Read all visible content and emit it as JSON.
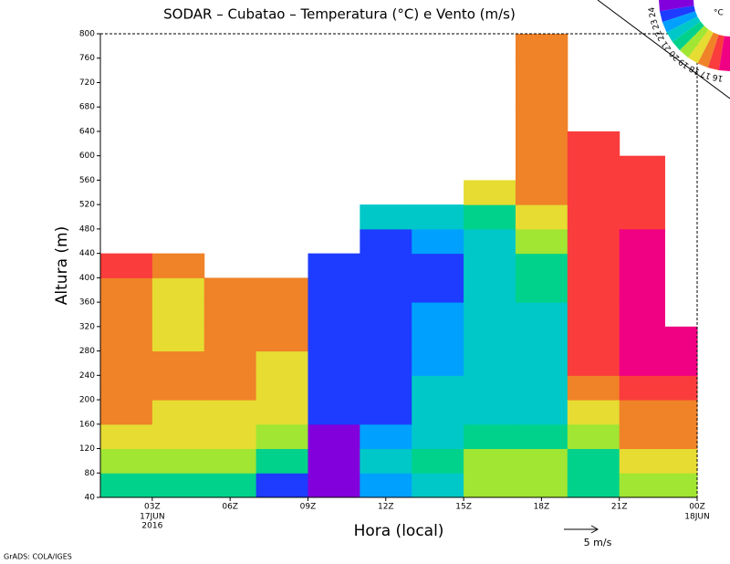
{
  "chart_data": {
    "type": "contour",
    "title": "SODAR – Cubatao – Temperatura (°C) e Vento (m/s)",
    "x_label": "Hora (local)",
    "y_label": "Altura (m)",
    "x_date_labels": [
      {
        "value": 3,
        "label": "17JUN"
      },
      {
        "value": 3,
        "label": "2016"
      },
      {
        "value": 24,
        "label": "18JUN"
      }
    ],
    "credit": "GrADS: COLA/IGES",
    "vector_reference": "5 m/s",
    "colorbar_unit": "°C",
    "xlim": [
      1,
      24
    ],
    "xticks": [
      {
        "value": 3,
        "label": "03Z"
      },
      {
        "value": 6,
        "label": "06Z"
      },
      {
        "value": 9,
        "label": "09Z"
      },
      {
        "value": 12,
        "label": "12Z"
      },
      {
        "value": 15,
        "label": "15Z"
      },
      {
        "value": 18,
        "label": "18Z"
      },
      {
        "value": 21,
        "label": "21Z"
      },
      {
        "value": 24,
        "label": "00Z"
      }
    ],
    "ylim": [
      40,
      800
    ],
    "yticks": [
      40,
      80,
      120,
      160,
      200,
      240,
      280,
      320,
      360,
      400,
      440,
      480,
      520,
      560,
      600,
      640,
      680,
      720,
      760,
      800
    ],
    "levels": [
      16,
      17,
      18,
      19,
      20,
      21,
      22,
      23,
      24
    ],
    "colors": [
      "#8200dc",
      "#1e3cff",
      "#00a0ff",
      "#00c8c8",
      "#00d28c",
      "#a0e632",
      "#e6dc32",
      "#f08228",
      "#fa3c3c",
      "#f00082"
    ],
    "x": [
      2,
      4,
      6,
      8,
      10,
      12,
      14,
      16,
      18,
      20,
      22,
      23.5
    ],
    "y": [
      60,
      100,
      140,
      180,
      220,
      260,
      300,
      340,
      380,
      420,
      460,
      500,
      540,
      580,
      620,
      660,
      700,
      740,
      780
    ],
    "z": [
      [
        19.5,
        20.5,
        21.5,
        22.5,
        22.8,
        22.8,
        22.7,
        22.8,
        22.9,
        23.5,
        null,
        null,
        null,
        null,
        null,
        null,
        null,
        null,
        null
      ],
      [
        19.5,
        20.5,
        21.5,
        21.8,
        22.2,
        22.5,
        21.8,
        21.5,
        21.5,
        22.5,
        null,
        null,
        null,
        null,
        null,
        null,
        null,
        null,
        null
      ],
      [
        19.5,
        20.5,
        21.3,
        21.8,
        22.2,
        22.5,
        22.8,
        22.8,
        22.8,
        null,
        null,
        null,
        null,
        null,
        null,
        null,
        null,
        null,
        null
      ],
      [
        16.5,
        19.5,
        20.5,
        21.2,
        21.5,
        21.7,
        22.0,
        22.5,
        22.5,
        null,
        null,
        null,
        null,
        null,
        null,
        null,
        null,
        null,
        null
      ],
      [
        15.5,
        15.5,
        15.8,
        16.5,
        16.8,
        16.5,
        16.2,
        16.0,
        16.0,
        16.0,
        null,
        null,
        null,
        null,
        null,
        null,
        null,
        null,
        null
      ],
      [
        17.5,
        18.5,
        17.2,
        16.8,
        16.5,
        16.3,
        16.0,
        16.0,
        16.0,
        16.2,
        16.8,
        18.0,
        null,
        null,
        null,
        null,
        null,
        null,
        null
      ],
      [
        18.5,
        19.5,
        18.5,
        18.5,
        18.2,
        17.5,
        17.2,
        17.0,
        16.8,
        16.8,
        17.2,
        18.5,
        null,
        null,
        null,
        null,
        null,
        null,
        null
      ],
      [
        20.5,
        20.5,
        19.5,
        18.8,
        18.5,
        18.3,
        18.2,
        18.0,
        18.0,
        18.0,
        18.5,
        19.5,
        21.0,
        null,
        null,
        null,
        null,
        null,
        null
      ],
      [
        20.8,
        20.0,
        19.5,
        18.8,
        18.5,
        18.5,
        18.7,
        18.8,
        19.0,
        19.5,
        20.5,
        21.8,
        22.5,
        22.8,
        22.9,
        22.8,
        22.7,
        22.6,
        22.5
      ],
      [
        19.5,
        19.8,
        20.5,
        21.5,
        22.5,
        23.2,
        23.5,
        23.5,
        23.5,
        23.5,
        23.5,
        23.5,
        23.5,
        23.3,
        23.1,
        null,
        null,
        null,
        null
      ],
      [
        20.5,
        21.5,
        22.0,
        22.5,
        23.2,
        24.2,
        24.5,
        24.5,
        24.2,
        24.2,
        24.2,
        23.8,
        23.5,
        23.5,
        null,
        null,
        null,
        null,
        null
      ],
      [
        20.5,
        21.5,
        22.5,
        22.8,
        23.2,
        24.2,
        24.5,
        null,
        null,
        null,
        null,
        null,
        null,
        null,
        null,
        null,
        null,
        null,
        null
      ]
    ]
  }
}
